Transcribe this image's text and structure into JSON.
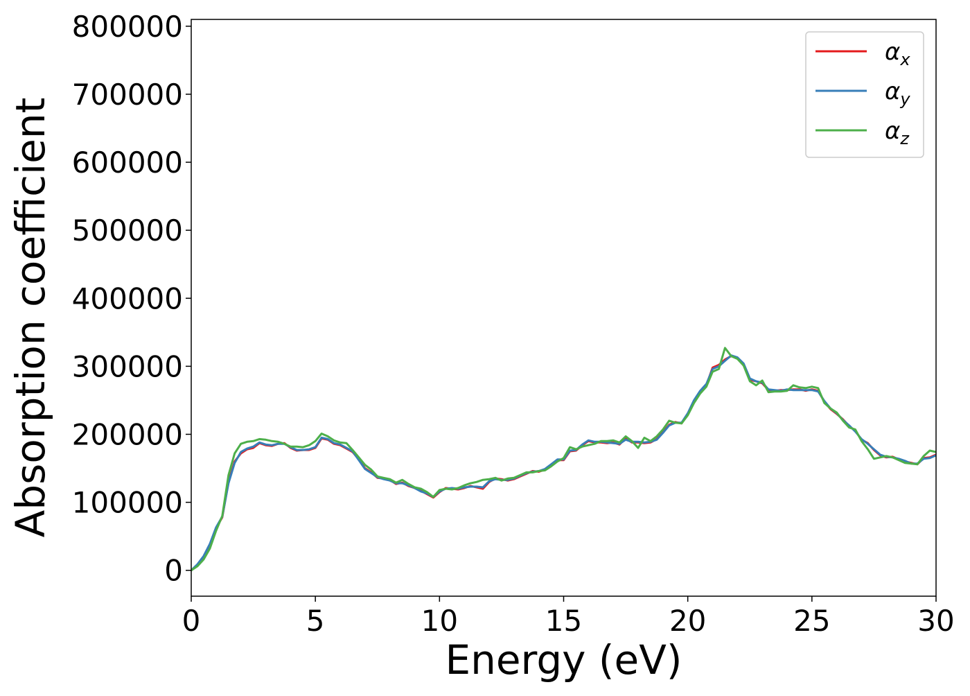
{
  "chart_data": {
    "type": "line",
    "title": "",
    "xlabel": "Energy (eV)",
    "ylabel": "Absorption coefficient",
    "xlim": [
      0,
      30
    ],
    "ylim": [
      -38000,
      810000
    ],
    "xticks": [
      0,
      5,
      10,
      15,
      20,
      25,
      30
    ],
    "yticks": [
      0,
      100000,
      200000,
      300000,
      400000,
      500000,
      600000,
      700000,
      800000
    ],
    "grid": false,
    "legend_position": "top-right",
    "series": [
      {
        "name": "αx",
        "legend_symbol": "α",
        "legend_subscript": "x",
        "color": "#e41a1c",
        "x": [
          0,
          0.25,
          0.5,
          0.75,
          1.0,
          1.25,
          1.5,
          1.75,
          2.0,
          2.25,
          2.5,
          2.75,
          3.0,
          3.25,
          3.5,
          3.75,
          4.0,
          4.25,
          4.5,
          4.75,
          5.0,
          5.25,
          5.5,
          5.75,
          6.0,
          6.25,
          6.5,
          6.75,
          7.0,
          7.25,
          7.5,
          7.75,
          8.0,
          8.25,
          8.5,
          8.75,
          9.0,
          9.25,
          9.5,
          9.75,
          10.0,
          10.25,
          10.5,
          10.75,
          11.0,
          11.25,
          11.5,
          11.75,
          12.0,
          12.25,
          12.5,
          12.75,
          13.0,
          13.25,
          13.5,
          13.75,
          14.0,
          14.25,
          14.5,
          14.75,
          15.0,
          15.25,
          15.5,
          15.75,
          16.0,
          16.25,
          16.5,
          16.75,
          17.0,
          17.25,
          17.5,
          17.75,
          18.0,
          18.25,
          18.5,
          18.75,
          19.0,
          19.25,
          19.5,
          19.75,
          20.0,
          20.25,
          20.5,
          20.75,
          21.0,
          21.25,
          21.5,
          21.75,
          22.0,
          22.25,
          22.5,
          22.75,
          23.0,
          23.25,
          23.5,
          23.75,
          24.0,
          24.25,
          24.5,
          24.75,
          25.0,
          25.25,
          25.5,
          25.75,
          26.0,
          26.25,
          26.5,
          26.75,
          27.0,
          27.25,
          27.5,
          27.75,
          28.0,
          28.25,
          28.5,
          28.75,
          29.0,
          29.25,
          29.5,
          29.75,
          30.0
        ],
        "y": [
          0,
          8000,
          20000,
          38000,
          62000,
          78000,
          130000,
          160000,
          172000,
          178000,
          180000,
          187000,
          184000,
          183000,
          186000,
          187000,
          180000,
          176000,
          177000,
          177000,
          180000,
          194000,
          192000,
          186000,
          184000,
          179000,
          174000,
          163000,
          150000,
          144000,
          136000,
          135000,
          133000,
          127000,
          129000,
          124000,
          121000,
          117000,
          112000,
          107000,
          115000,
          121000,
          120000,
          119000,
          121000,
          124000,
          122000,
          120000,
          130000,
          135000,
          134000,
          132000,
          134000,
          138000,
          142000,
          146000,
          145000,
          148000,
          155000,
          162000,
          162000,
          175000,
          176000,
          184000,
          190000,
          188000,
          188000,
          187000,
          188000,
          185000,
          194000,
          188000,
          188000,
          187000,
          188000,
          193000,
          203000,
          214000,
          218000,
          216000,
          230000,
          248000,
          262000,
          272000,
          298000,
          302000,
          310000,
          315000,
          312000,
          303000,
          280000,
          278000,
          275000,
          265000,
          264000,
          265000,
          265000,
          266000,
          266000,
          264000,
          266000,
          264000,
          248000,
          237000,
          230000,
          222000,
          212000,
          205000,
          192000,
          187000,
          177000,
          169000,
          166000,
          167000,
          163000,
          160000,
          158000,
          156000,
          165000,
          166000,
          170000
        ]
      },
      {
        "name": "αy",
        "legend_symbol": "α",
        "legend_subscript": "y",
        "color": "#377eb8",
        "x": [
          0,
          0.25,
          0.5,
          0.75,
          1.0,
          1.25,
          1.5,
          1.75,
          2.0,
          2.25,
          2.5,
          2.75,
          3.0,
          3.25,
          3.5,
          3.75,
          4.0,
          4.25,
          4.5,
          4.75,
          5.0,
          5.25,
          5.5,
          5.75,
          6.0,
          6.25,
          6.5,
          6.75,
          7.0,
          7.25,
          7.5,
          7.75,
          8.0,
          8.25,
          8.5,
          8.75,
          9.0,
          9.25,
          9.5,
          9.75,
          10.0,
          10.25,
          10.5,
          10.75,
          11.0,
          11.25,
          11.5,
          11.75,
          12.0,
          12.25,
          12.5,
          12.75,
          13.0,
          13.25,
          13.5,
          13.75,
          14.0,
          14.25,
          14.5,
          14.75,
          15.0,
          15.25,
          15.5,
          15.75,
          16.0,
          16.25,
          16.5,
          16.75,
          17.0,
          17.25,
          17.5,
          17.75,
          18.0,
          18.25,
          18.5,
          18.75,
          19.0,
          19.25,
          19.5,
          19.75,
          20.0,
          20.25,
          20.5,
          20.75,
          21.0,
          21.25,
          21.5,
          21.75,
          22.0,
          22.25,
          22.5,
          22.75,
          23.0,
          23.25,
          23.5,
          23.75,
          24.0,
          24.25,
          24.5,
          24.75,
          25.0,
          25.25,
          25.5,
          25.75,
          26.0,
          26.25,
          26.5,
          26.75,
          27.0,
          27.25,
          27.5,
          27.75,
          28.0,
          28.25,
          28.5,
          28.75,
          29.0,
          29.25,
          29.5,
          29.75,
          30.0
        ],
        "y": [
          0,
          9000,
          21000,
          39000,
          63000,
          79000,
          128000,
          158000,
          174000,
          179000,
          182000,
          188000,
          185000,
          184000,
          186000,
          186000,
          181000,
          177000,
          177000,
          178000,
          181000,
          195000,
          193000,
          187000,
          185000,
          180000,
          175000,
          162000,
          149000,
          143000,
          137000,
          134000,
          132000,
          128000,
          128000,
          125000,
          121000,
          116000,
          113000,
          108000,
          116000,
          120000,
          121000,
          120000,
          122000,
          123000,
          123000,
          122000,
          131000,
          134000,
          133000,
          133000,
          135000,
          139000,
          143000,
          145000,
          146000,
          149000,
          156000,
          163000,
          163000,
          176000,
          177000,
          185000,
          191000,
          189000,
          189000,
          188000,
          187000,
          186000,
          192000,
          189000,
          189000,
          188000,
          189000,
          192000,
          202000,
          213000,
          217000,
          217000,
          231000,
          250000,
          264000,
          274000,
          296000,
          300000,
          308000,
          316000,
          313000,
          304000,
          282000,
          278000,
          276000,
          266000,
          265000,
          264000,
          266000,
          265000,
          265000,
          265000,
          265000,
          263000,
          249000,
          238000,
          231000,
          221000,
          213000,
          204000,
          193000,
          186000,
          178000,
          170000,
          167000,
          166000,
          164000,
          161000,
          157000,
          157000,
          164000,
          165000,
          169000
        ]
      },
      {
        "name": "αz",
        "legend_symbol": "α",
        "legend_subscript": "z",
        "color": "#4daf4a",
        "x": [
          0,
          0.25,
          0.5,
          0.75,
          1.0,
          1.25,
          1.5,
          1.75,
          2.0,
          2.25,
          2.5,
          2.75,
          3.0,
          3.25,
          3.5,
          3.75,
          4.0,
          4.25,
          4.5,
          4.75,
          5.0,
          5.25,
          5.5,
          5.75,
          6.0,
          6.25,
          6.5,
          6.75,
          7.0,
          7.25,
          7.5,
          7.75,
          8.0,
          8.25,
          8.5,
          8.75,
          9.0,
          9.25,
          9.5,
          9.75,
          10.0,
          10.25,
          10.5,
          10.75,
          11.0,
          11.25,
          11.5,
          11.75,
          12.0,
          12.25,
          12.5,
          12.75,
          13.0,
          13.25,
          13.5,
          13.75,
          14.0,
          14.25,
          14.5,
          14.75,
          15.0,
          15.25,
          15.5,
          15.75,
          16.0,
          16.25,
          16.5,
          16.75,
          17.0,
          17.25,
          17.5,
          17.75,
          18.0,
          18.25,
          18.5,
          18.75,
          19.0,
          19.25,
          19.5,
          19.75,
          20.0,
          20.25,
          20.5,
          20.75,
          21.0,
          21.25,
          21.5,
          21.75,
          22.0,
          22.25,
          22.5,
          22.75,
          23.0,
          23.25,
          23.5,
          23.75,
          24.0,
          24.25,
          24.5,
          24.75,
          25.0,
          25.25,
          25.5,
          25.75,
          26.0,
          26.25,
          26.5,
          26.75,
          27.0,
          27.25,
          27.5,
          27.75,
          28.0,
          28.25,
          28.5,
          28.75,
          29.0,
          29.25,
          29.5,
          29.75,
          30.0
        ],
        "y": [
          0,
          6000,
          16000,
          32000,
          58000,
          80000,
          140000,
          172000,
          186000,
          189000,
          190000,
          193000,
          192000,
          190000,
          189000,
          186000,
          182000,
          182000,
          181000,
          184000,
          190000,
          201000,
          197000,
          191000,
          188000,
          187000,
          177000,
          166000,
          155000,
          148000,
          138000,
          136000,
          134000,
          129000,
          133000,
          127000,
          122000,
          120000,
          115000,
          108000,
          118000,
          120000,
          119000,
          121000,
          125000,
          128000,
          130000,
          133000,
          134000,
          136000,
          132000,
          135000,
          136000,
          140000,
          144000,
          144000,
          146000,
          147000,
          153000,
          160000,
          165000,
          181000,
          178000,
          182000,
          184000,
          186000,
          190000,
          190000,
          191000,
          188000,
          197000,
          190000,
          180000,
          195000,
          190000,
          197000,
          207000,
          220000,
          217000,
          216000,
          228000,
          246000,
          260000,
          270000,
          292000,
          296000,
          327000,
          315000,
          311000,
          301000,
          278000,
          272000,
          279000,
          262000,
          263000,
          263000,
          264000,
          272000,
          269000,
          268000,
          270000,
          268000,
          246000,
          238000,
          232000,
          220000,
          210000,
          207000,
          190000,
          178000,
          164000,
          166000,
          168000,
          166000,
          162000,
          158000,
          157000,
          156000,
          168000,
          176000,
          174000
        ]
      }
    ]
  }
}
